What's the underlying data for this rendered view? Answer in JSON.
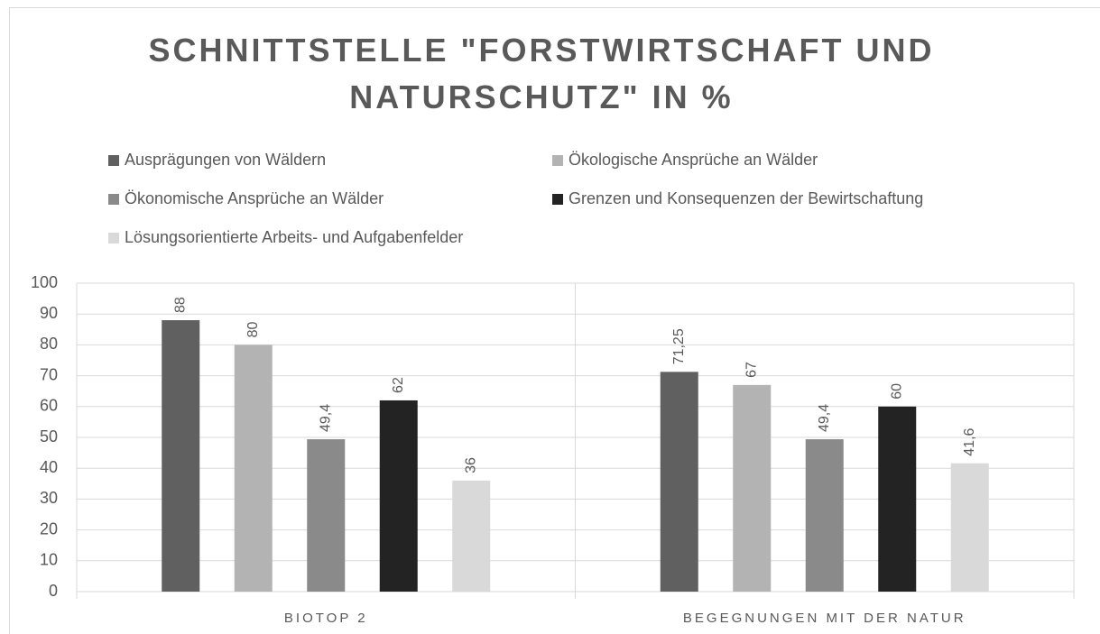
{
  "chart_data": {
    "type": "bar",
    "title": "SCHNITTSTELLE \"FORSTWIRTSCHAFT UND NATURSCHUTZ\" IN %",
    "categories": [
      "BIOTOP 2",
      "BEGEGNUNGEN MIT DER NATUR"
    ],
    "series": [
      {
        "name": "Ausprägungen von Wäldern",
        "color": "#606060",
        "values": [
          88,
          71.25
        ],
        "value_labels": [
          "88",
          "71,25"
        ]
      },
      {
        "name": "Ökologische Ansprüche an Wälder",
        "color": "#b3b3b3",
        "values": [
          80,
          67
        ],
        "value_labels": [
          "80",
          "67"
        ]
      },
      {
        "name": "Ökonomische Ansprüche an Wälder",
        "color": "#8a8a8a",
        "values": [
          49.4,
          49.4
        ],
        "value_labels": [
          "49,4",
          "49,4"
        ]
      },
      {
        "name": "Grenzen und Konsequenzen der Bewirtschaftung",
        "color": "#232323",
        "values": [
          62,
          60
        ],
        "value_labels": [
          "62",
          "60"
        ]
      },
      {
        "name": "Lösungsorientierte Arbeits- und Aufgabenfelder",
        "color": "#d9d9d9",
        "values": [
          36,
          41.6
        ],
        "value_labels": [
          "36",
          "41,6"
        ]
      }
    ],
    "ylim": [
      0,
      100
    ],
    "yticks": [
      0,
      10,
      20,
      30,
      40,
      50,
      60,
      70,
      80,
      90,
      100
    ],
    "grid": true,
    "legend": "top"
  }
}
